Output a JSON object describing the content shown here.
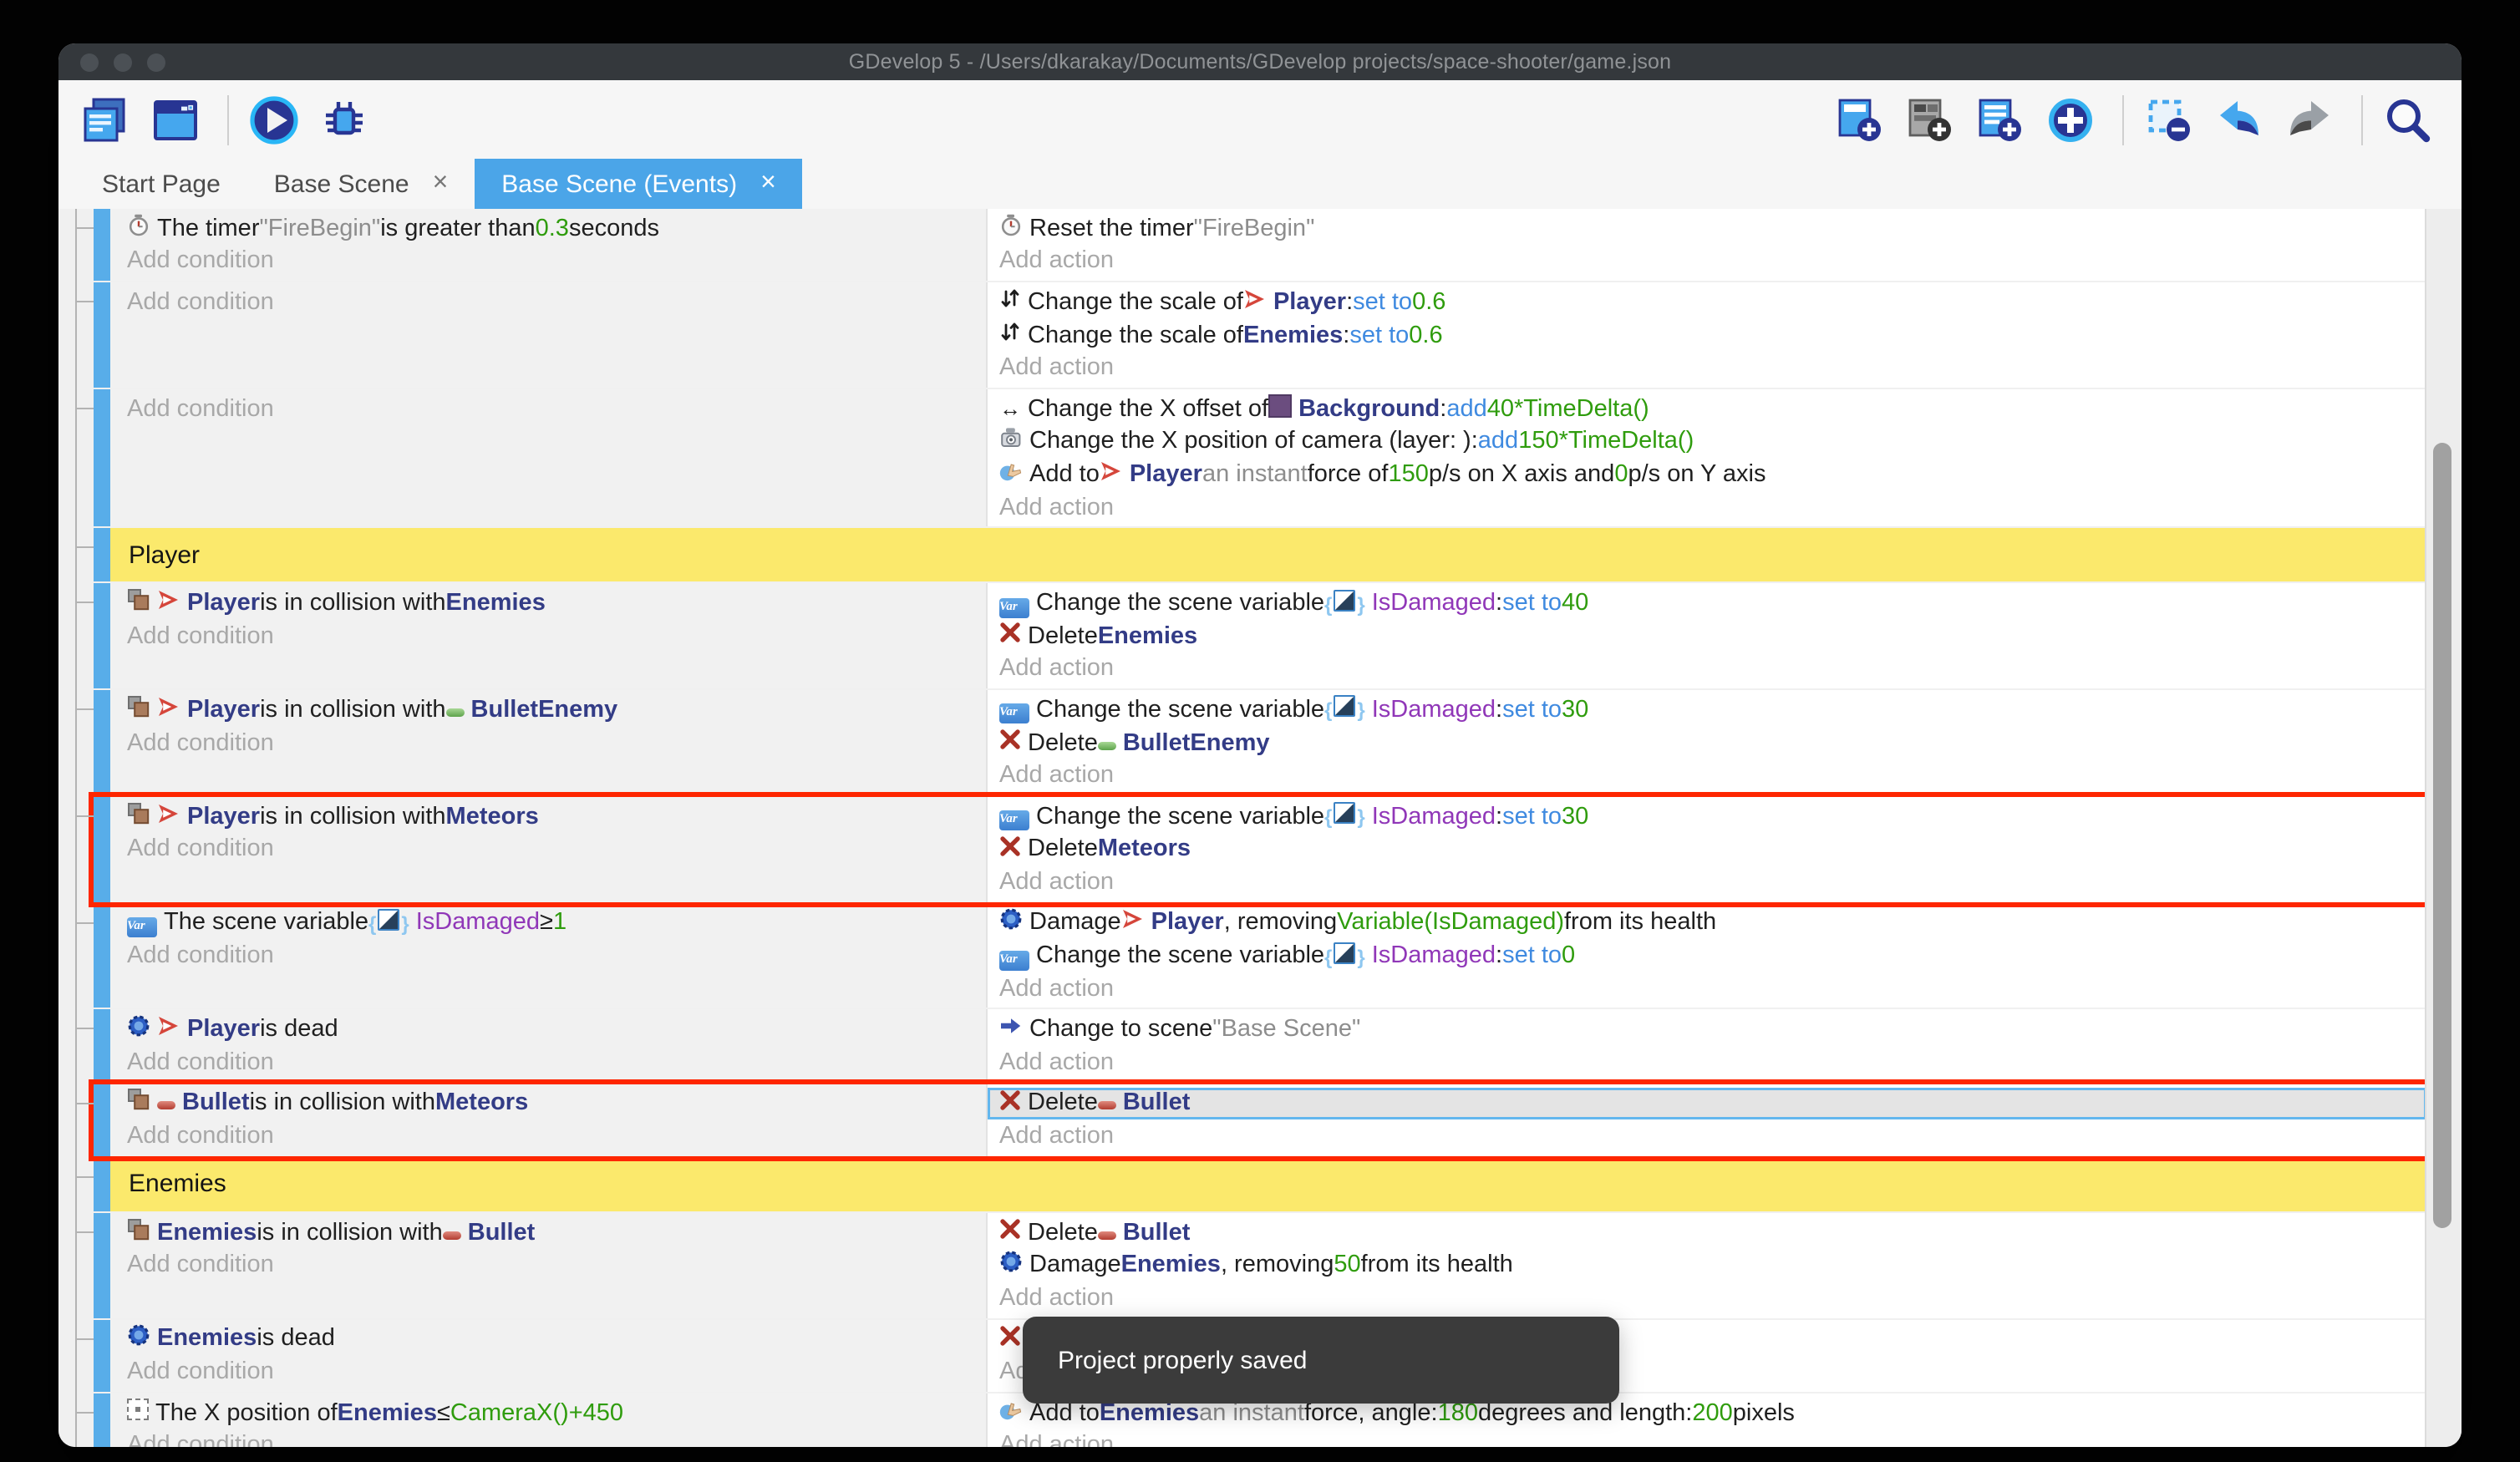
{
  "window": {
    "title": "GDevelop 5 - /Users/dkarakay/Documents/GDevelop projects/space-shooter/game.json",
    "traffic_lights": [
      "close",
      "minimize",
      "zoom"
    ]
  },
  "colors": {
    "accent_blue": "#4ba5e8",
    "event_bar_blue": "#58ade9",
    "group_yellow": "#fbe96c",
    "highlight_red": "#fe2600",
    "selection_blue": "#63b7ee",
    "object_indigo": "#333c86",
    "keyword_blue": "#3f8ae0",
    "number_green": "#2f9c0d",
    "variable_purple": "#9037b8",
    "titlebar": "#34383c",
    "toast_bg": "#3b3b3b"
  },
  "close_glyph": "×",
  "toolbar": {
    "left": [
      {
        "name": "project-manager-button",
        "icon": "project-manager-icon"
      },
      {
        "name": "scene-editor-button",
        "icon": "scene-editor-icon"
      },
      {
        "name": "separator"
      },
      {
        "name": "play-button",
        "icon": "play-icon"
      },
      {
        "name": "debug-button",
        "icon": "debug-icon"
      }
    ],
    "right": [
      {
        "name": "add-event-button",
        "icon": "add-event-icon"
      },
      {
        "name": "add-subevent-button",
        "icon": "add-subevent-icon"
      },
      {
        "name": "add-comment-button",
        "icon": "add-comment-icon"
      },
      {
        "name": "add-new-event-button",
        "icon": "add-circle-icon"
      },
      {
        "name": "separator"
      },
      {
        "name": "delete-selection-button",
        "icon": "delete-selection-icon"
      },
      {
        "name": "undo-button",
        "icon": "undo-icon"
      },
      {
        "name": "redo-button",
        "icon": "redo-icon"
      },
      {
        "name": "separator"
      },
      {
        "name": "search-button",
        "icon": "search-icon"
      }
    ]
  },
  "tabs": [
    {
      "label": "Start Page",
      "active": false,
      "closable": false
    },
    {
      "label": "Base Scene",
      "active": false,
      "closable": true
    },
    {
      "label": "Base Scene (Events)",
      "active": true,
      "closable": true
    }
  ],
  "toast": {
    "message": "Project properly saved"
  },
  "add_condition_label": "Add condition",
  "add_action_label": "Add action",
  "events": [
    {
      "type": "event",
      "conditions": [
        [
          {
            "i": "timer-icon"
          },
          {
            "t": "The timer ",
            "s": "plain"
          },
          {
            "t": "\"FireBegin\"",
            "s": "str"
          },
          {
            "t": " is greater than ",
            "s": "plain"
          },
          {
            "t": "0.3",
            "s": "num"
          },
          {
            "t": " seconds",
            "s": "plain"
          }
        ],
        [
          {
            "t": "Add condition",
            "s": "muted",
            "add": true
          }
        ]
      ],
      "actions": [
        [
          {
            "i": "timer-icon"
          },
          {
            "t": "Reset the timer ",
            "s": "plain"
          },
          {
            "t": "\"FireBegin\"",
            "s": "str"
          }
        ],
        [
          {
            "t": "Add action",
            "s": "muted",
            "add": true
          }
        ]
      ]
    },
    {
      "type": "event",
      "conditions": [
        [
          {
            "t": "Add condition",
            "s": "muted",
            "add": true
          }
        ]
      ],
      "actions": [
        [
          {
            "i": "scale-icon"
          },
          {
            "t": "Change the scale of ",
            "s": "plain"
          },
          {
            "i": "player-ship-icon"
          },
          {
            "t": "Player",
            "s": "obj"
          },
          {
            "t": ": ",
            "s": "plain"
          },
          {
            "t": "set to ",
            "s": "kw"
          },
          {
            "t": "0.6",
            "s": "num"
          }
        ],
        [
          {
            "i": "scale-icon"
          },
          {
            "t": "Change the scale of ",
            "s": "plain"
          },
          {
            "t": "Enemies",
            "s": "obj"
          },
          {
            "t": ": ",
            "s": "plain"
          },
          {
            "t": "set to ",
            "s": "kw"
          },
          {
            "t": "0.6",
            "s": "num"
          }
        ],
        [
          {
            "t": "Add action",
            "s": "muted",
            "add": true
          }
        ]
      ]
    },
    {
      "type": "event",
      "conditions": [
        [
          {
            "t": "Add condition",
            "s": "muted",
            "add": true
          }
        ]
      ],
      "actions": [
        [
          {
            "i": "offset-icon"
          },
          {
            "t": "Change the X offset of ",
            "s": "plain"
          },
          {
            "i": "background-swatch-icon"
          },
          {
            "t": "Background",
            "s": "obj"
          },
          {
            "t": ": ",
            "s": "plain"
          },
          {
            "t": "add ",
            "s": "kw"
          },
          {
            "t": "40*TimeDelta()",
            "s": "num"
          }
        ],
        [
          {
            "i": "camera-icon"
          },
          {
            "t": "Change the X position of camera (layer: ): ",
            "s": "plain"
          },
          {
            "t": "add ",
            "s": "kw"
          },
          {
            "t": "150*TimeDelta()",
            "s": "num"
          }
        ],
        [
          {
            "i": "force-icon"
          },
          {
            "t": "Add to ",
            "s": "plain"
          },
          {
            "i": "player-ship-icon"
          },
          {
            "t": "Player",
            "s": "obj"
          },
          {
            "t": " an instant ",
            "s": "str"
          },
          {
            "t": "force of ",
            "s": "plain"
          },
          {
            "t": "150",
            "s": "num"
          },
          {
            "t": " p/s on X axis and ",
            "s": "plain"
          },
          {
            "t": "0",
            "s": "num"
          },
          {
            "t": " p/s on Y axis",
            "s": "plain"
          }
        ],
        [
          {
            "t": "Add action",
            "s": "muted",
            "add": true
          }
        ]
      ]
    },
    {
      "type": "group",
      "label": "Player"
    },
    {
      "type": "event",
      "conditions": [
        [
          {
            "i": "collision-icon"
          },
          {
            "i": "player-ship-icon"
          },
          {
            "t": "Player",
            "s": "obj"
          },
          {
            "t": " is in collision with ",
            "s": "plain"
          },
          {
            "t": "Enemies",
            "s": "obj"
          }
        ],
        [
          {
            "t": "Add condition",
            "s": "muted",
            "add": true
          }
        ]
      ],
      "actions": [
        [
          {
            "i": "variable-icon"
          },
          {
            "t": "Change the scene variable ",
            "s": "plain"
          },
          {
            "i": "variable-ref-icon"
          },
          {
            "t": "IsDamaged",
            "s": "var"
          },
          {
            "t": ": ",
            "s": "plain"
          },
          {
            "t": "set to ",
            "s": "kw"
          },
          {
            "t": "40",
            "s": "num"
          }
        ],
        [
          {
            "i": "delete-icon"
          },
          {
            "t": "Delete ",
            "s": "plain"
          },
          {
            "t": "Enemies",
            "s": "obj"
          }
        ],
        [
          {
            "t": "Add action",
            "s": "muted",
            "add": true
          }
        ]
      ]
    },
    {
      "type": "event",
      "conditions": [
        [
          {
            "i": "collision-icon"
          },
          {
            "i": "player-ship-icon"
          },
          {
            "t": "Player",
            "s": "obj"
          },
          {
            "t": " is in collision with ",
            "s": "plain"
          },
          {
            "i": "bullet-green-icon"
          },
          {
            "t": "BulletEnemy",
            "s": "obj"
          }
        ],
        [
          {
            "t": "Add condition",
            "s": "muted",
            "add": true
          }
        ]
      ],
      "actions": [
        [
          {
            "i": "variable-icon"
          },
          {
            "t": "Change the scene variable ",
            "s": "plain"
          },
          {
            "i": "variable-ref-icon"
          },
          {
            "t": "IsDamaged",
            "s": "var"
          },
          {
            "t": ": ",
            "s": "plain"
          },
          {
            "t": "set to ",
            "s": "kw"
          },
          {
            "t": "30",
            "s": "num"
          }
        ],
        [
          {
            "i": "delete-icon"
          },
          {
            "t": "Delete ",
            "s": "plain"
          },
          {
            "i": "bullet-green-icon"
          },
          {
            "t": "BulletEnemy",
            "s": "obj"
          }
        ],
        [
          {
            "t": "Add action",
            "s": "muted",
            "add": true
          }
        ]
      ]
    },
    {
      "type": "event",
      "highlight": true,
      "conditions": [
        [
          {
            "i": "collision-icon"
          },
          {
            "i": "player-ship-icon"
          },
          {
            "t": "Player",
            "s": "obj"
          },
          {
            "t": " is in collision with ",
            "s": "plain"
          },
          {
            "t": "Meteors",
            "s": "obj"
          }
        ],
        [
          {
            "t": "Add condition",
            "s": "muted",
            "add": true
          }
        ]
      ],
      "actions": [
        [
          {
            "i": "variable-icon"
          },
          {
            "t": "Change the scene variable ",
            "s": "plain"
          },
          {
            "i": "variable-ref-icon"
          },
          {
            "t": "IsDamaged",
            "s": "var"
          },
          {
            "t": ": ",
            "s": "plain"
          },
          {
            "t": "set to ",
            "s": "kw"
          },
          {
            "t": "30",
            "s": "num"
          }
        ],
        [
          {
            "i": "delete-icon"
          },
          {
            "t": "Delete ",
            "s": "plain"
          },
          {
            "t": "Meteors",
            "s": "obj"
          }
        ],
        [
          {
            "t": "Add action",
            "s": "muted",
            "add": true
          }
        ]
      ]
    },
    {
      "type": "event",
      "conditions": [
        [
          {
            "i": "variable-icon"
          },
          {
            "t": "The scene variable ",
            "s": "plain"
          },
          {
            "i": "variable-ref-icon"
          },
          {
            "t": "IsDamaged",
            "s": "var"
          },
          {
            "t": " ≥ ",
            "s": "plain"
          },
          {
            "t": "1",
            "s": "num"
          }
        ],
        [
          {
            "t": "Add condition",
            "s": "muted",
            "add": true
          }
        ]
      ],
      "actions": [
        [
          {
            "i": "health-icon"
          },
          {
            "t": "Damage ",
            "s": "plain"
          },
          {
            "i": "player-ship-icon"
          },
          {
            "t": "Player",
            "s": "obj"
          },
          {
            "t": ", removing ",
            "s": "plain"
          },
          {
            "t": "Variable(IsDamaged)",
            "s": "num"
          },
          {
            "t": " from its health",
            "s": "plain"
          }
        ],
        [
          {
            "i": "variable-icon"
          },
          {
            "t": "Change the scene variable ",
            "s": "plain"
          },
          {
            "i": "variable-ref-icon"
          },
          {
            "t": "IsDamaged",
            "s": "var"
          },
          {
            "t": ": ",
            "s": "plain"
          },
          {
            "t": "set to ",
            "s": "kw"
          },
          {
            "t": "0",
            "s": "num"
          }
        ],
        [
          {
            "t": "Add action",
            "s": "muted",
            "add": true
          }
        ]
      ]
    },
    {
      "type": "event",
      "conditions": [
        [
          {
            "i": "health-icon"
          },
          {
            "i": "player-ship-icon"
          },
          {
            "t": "Player",
            "s": "obj"
          },
          {
            "t": " is dead",
            "s": "plain"
          }
        ],
        [
          {
            "t": "Add condition",
            "s": "muted",
            "add": true
          }
        ]
      ],
      "actions": [
        [
          {
            "i": "scene-arrow-icon"
          },
          {
            "t": "Change to scene ",
            "s": "plain"
          },
          {
            "t": "\"Base Scene\"",
            "s": "str"
          }
        ],
        [
          {
            "t": "Add action",
            "s": "muted",
            "add": true
          }
        ]
      ]
    },
    {
      "type": "event",
      "highlight": true,
      "conditions": [
        [
          {
            "i": "collision-icon"
          },
          {
            "i": "bullet-red-icon"
          },
          {
            "t": "Bullet",
            "s": "obj"
          },
          {
            "t": " is in collision with ",
            "s": "plain"
          },
          {
            "t": "Meteors",
            "s": "obj"
          }
        ],
        [
          {
            "t": "Add condition",
            "s": "muted",
            "add": true
          }
        ]
      ],
      "actions": [
        [
          {
            "sel": true
          },
          {
            "i": "delete-icon"
          },
          {
            "t": "Delete ",
            "s": "plain"
          },
          {
            "i": "bullet-red-icon"
          },
          {
            "t": "Bullet",
            "s": "obj"
          }
        ],
        [
          {
            "t": "Add action",
            "s": "muted",
            "add": true
          }
        ]
      ]
    },
    {
      "type": "group",
      "label": "Enemies"
    },
    {
      "type": "event",
      "conditions": [
        [
          {
            "i": "collision-icon"
          },
          {
            "t": "Enemies",
            "s": "obj"
          },
          {
            "t": " is in collision with ",
            "s": "plain"
          },
          {
            "i": "bullet-red-icon"
          },
          {
            "t": "Bullet",
            "s": "obj"
          }
        ],
        [
          {
            "t": "Add condition",
            "s": "muted",
            "add": true
          }
        ]
      ],
      "actions": [
        [
          {
            "i": "delete-icon"
          },
          {
            "t": "Delete ",
            "s": "plain"
          },
          {
            "i": "bullet-red-icon"
          },
          {
            "t": "Bullet",
            "s": "obj"
          }
        ],
        [
          {
            "i": "health-icon"
          },
          {
            "t": "Damage ",
            "s": "plain"
          },
          {
            "t": "Enemies",
            "s": "obj"
          },
          {
            "t": ", removing ",
            "s": "plain"
          },
          {
            "t": "50",
            "s": "num"
          },
          {
            "t": " from its health",
            "s": "plain"
          }
        ],
        [
          {
            "t": "Add action",
            "s": "muted",
            "add": true
          }
        ]
      ]
    },
    {
      "type": "event",
      "conditions": [
        [
          {
            "i": "health-icon"
          },
          {
            "t": "Enemies",
            "s": "obj"
          },
          {
            "t": " is dead",
            "s": "plain"
          }
        ],
        [
          {
            "t": "Add condition",
            "s": "muted",
            "add": true
          }
        ]
      ],
      "actions": [
        [
          {
            "i": "delete-icon"
          }
        ],
        [
          {
            "t": "Add action",
            "s": "muted",
            "add": true
          }
        ]
      ]
    },
    {
      "type": "event",
      "conditions": [
        [
          {
            "i": "position-icon"
          },
          {
            "t": "The X position of ",
            "s": "plain"
          },
          {
            "t": "Enemies",
            "s": "obj"
          },
          {
            "t": " ≤ ",
            "s": "plain"
          },
          {
            "t": "CameraX()+450",
            "s": "num"
          }
        ],
        [
          {
            "t": "Add condition",
            "s": "muted",
            "add": true
          }
        ]
      ],
      "actions": [
        [
          {
            "i": "force-icon"
          },
          {
            "t": "Add to ",
            "s": "plain"
          },
          {
            "t": "Enemies",
            "s": "obj"
          },
          {
            "t": " an instant ",
            "s": "str"
          },
          {
            "t": "force, angle: ",
            "s": "plain"
          },
          {
            "t": "180",
            "s": "num"
          },
          {
            "t": " degrees and length: ",
            "s": "plain"
          },
          {
            "t": "200",
            "s": "num"
          },
          {
            "t": " pixels",
            "s": "plain"
          }
        ],
        [
          {
            "t": "Add action",
            "s": "muted",
            "add": true
          }
        ]
      ]
    }
  ]
}
